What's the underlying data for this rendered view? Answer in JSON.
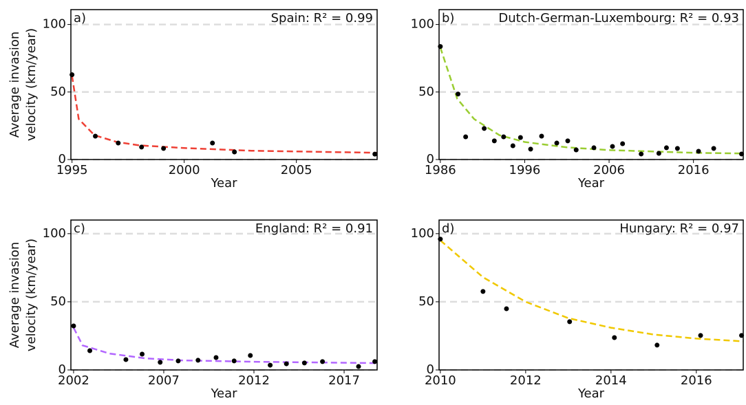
{
  "chart_data": [
    {
      "type": "scatter",
      "panel_label": "a)",
      "annotation": "Spain: R² = 0.99",
      "xlabel": "Year",
      "ylabel": [
        "Average invasion",
        "velocity (km/year)"
      ],
      "x": [
        1995,
        1996.04,
        1997.06,
        1998.1,
        1999.08,
        2001.26,
        2002.24,
        2008.5
      ],
      "values": [
        62.8,
        17.3,
        12.2,
        9.2,
        8.2,
        12.2,
        5.6,
        4
      ],
      "fit_x": [
        1995,
        1995.3,
        1996,
        1997,
        1998,
        2000,
        2003,
        2008.6
      ],
      "fit_values": [
        62,
        30,
        18,
        13,
        10.5,
        8.5,
        6.5,
        5
      ],
      "color": "#ee4035",
      "xlim": [
        1994.95,
        2008.6
      ],
      "ylim": [
        0,
        111
      ],
      "xticks": [
        1995,
        2000,
        2005
      ],
      "yticks": [
        0,
        50,
        100
      ],
      "grid": true
    },
    {
      "type": "scatter",
      "panel_label": "b)",
      "annotation": "Dutch-German-Luxembourg: R² = 0.93",
      "xlabel": "Year",
      "x": [
        1986,
        1988.1,
        1989,
        1991.2,
        1992.4,
        1993.5,
        1994.6,
        1995.5,
        1996.7,
        1998,
        1999.8,
        2001.1,
        2002.1,
        2004.2,
        2006.4,
        2007.6,
        2009.8,
        2011.9,
        2012.8,
        2014.1,
        2016.6,
        2018.4,
        2021.7
      ],
      "values": [
        83.7,
        48.5,
        16.8,
        23,
        13.8,
        16.8,
        10.2,
        16.3,
        7.7,
        17.3,
        12.2,
        13.8,
        7.1,
        8.7,
        9.7,
        11.7,
        4.1,
        4.6,
        8.7,
        8.2,
        6.1,
        8.2,
        4.1
      ],
      "fit_x": [
        1986,
        1988,
        1990,
        1993,
        1996,
        2001,
        2006,
        2011,
        2016,
        2021.9
      ],
      "fit_values": [
        83,
        45,
        30,
        18,
        13,
        9,
        7,
        6,
        5,
        4.5
      ],
      "color": "#9acd32",
      "xlim": [
        1985.85,
        2021.9
      ],
      "ylim": [
        0,
        111
      ],
      "xticks": [
        1986,
        1996,
        2006,
        2016
      ],
      "yticks": [
        0,
        50,
        100
      ],
      "grid": true
    },
    {
      "type": "scatter",
      "panel_label": "c)",
      "annotation": "England: R² = 0.91",
      "xlabel": "Year",
      "ylabel": [
        "Average invasion",
        "velocity (km/year)"
      ],
      "x": [
        2002,
        2002.9,
        2004.9,
        2005.8,
        2006.8,
        2007.8,
        2008.9,
        2009.9,
        2010.9,
        2011.8,
        2012.9,
        2013.8,
        2014.8,
        2015.8,
        2017.8,
        2018.7
      ],
      "values": [
        32.3,
        14.1,
        7.6,
        11.6,
        5.6,
        6.6,
        7.1,
        9.1,
        6.6,
        10.6,
        3.5,
        4.5,
        5.1,
        6.1,
        2.5,
        6.1
      ],
      "fit_x": [
        2002,
        2002.5,
        2004,
        2006,
        2008,
        2012,
        2018.8
      ],
      "fit_values": [
        31,
        18,
        12,
        8.5,
        7,
        6,
        5
      ],
      "color": "#b266ff",
      "xlim": [
        2001.85,
        2018.83
      ],
      "ylim": [
        0,
        110
      ],
      "xticks": [
        2002,
        2007,
        2012,
        2017
      ],
      "yticks": [
        0,
        50,
        100
      ],
      "grid": true
    },
    {
      "type": "scatter",
      "panel_label": "d)",
      "annotation": "Hungary: R² = 0.97",
      "xlabel": "Year",
      "x": [
        2010,
        2011,
        2011.55,
        2013.03,
        2014.08,
        2015.08,
        2016.1,
        2017.06
      ],
      "values": [
        96,
        57.6,
        44.9,
        35.4,
        23.7,
        18.2,
        25.3,
        25.3
      ],
      "fit_x": [
        2010,
        2011,
        2012,
        2013,
        2014,
        2015,
        2016,
        2017.1
      ],
      "fit_values": [
        95,
        68,
        50,
        38,
        31,
        26,
        23,
        21
      ],
      "color": "#f0c800",
      "xlim": [
        2009.97,
        2017.1
      ],
      "ylim": [
        0,
        110
      ],
      "xticks": [
        2010,
        2012,
        2014,
        2016
      ],
      "yticks": [
        0,
        50,
        100
      ],
      "grid": true
    }
  ]
}
